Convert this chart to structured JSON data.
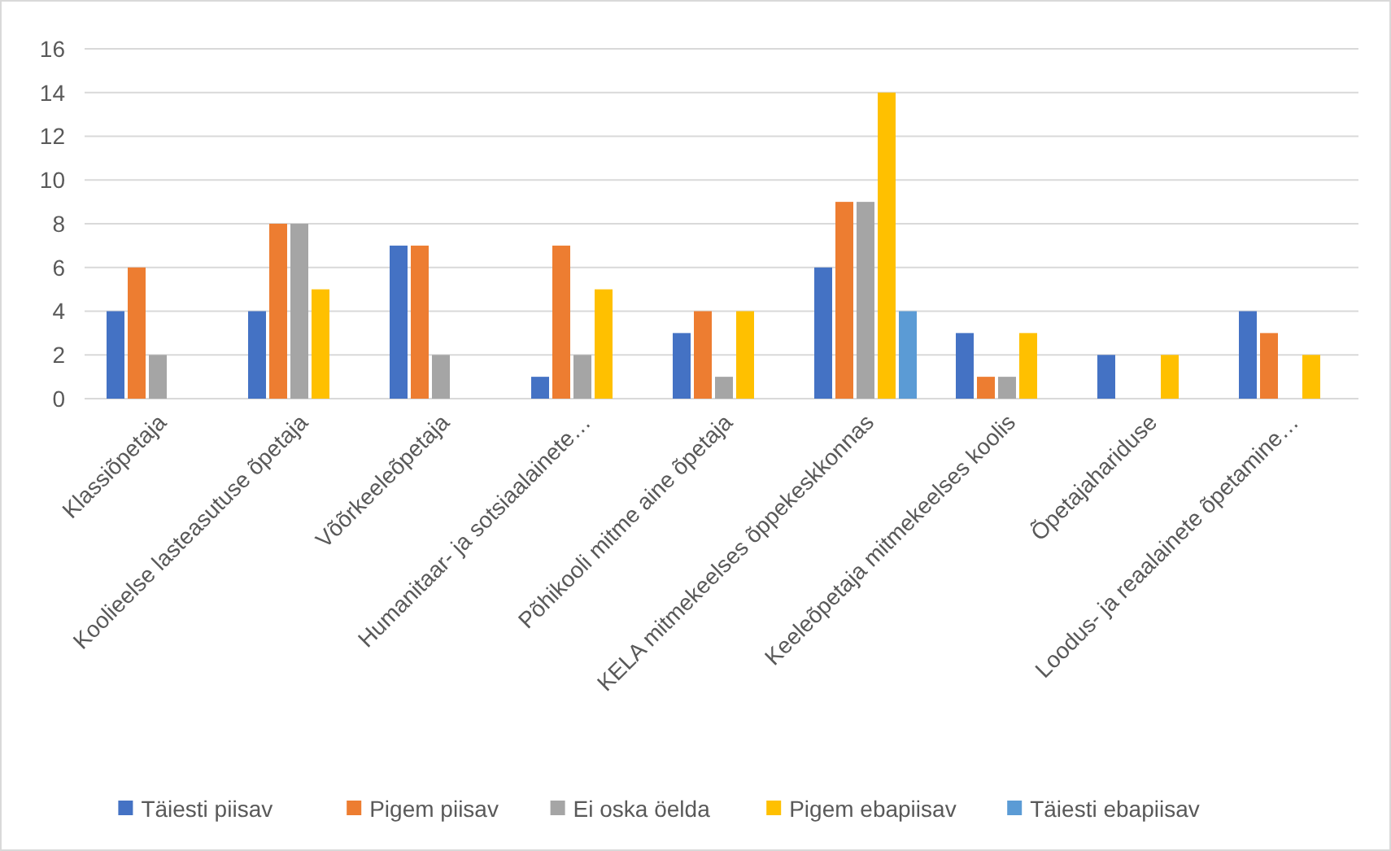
{
  "chart_data": {
    "type": "bar",
    "categories": [
      "Klassiõpetaja",
      "Koolieelse lasteasutuse õpetaja",
      "Võõrkeeleõpetaja",
      "Humanitaar- ja sotsiaalainete…",
      "Põhikooli mitme aine õpetaja",
      "KELA mitmekeelses õppekeskkonnas",
      "Keeleõpetaja mitmekeelses koolis",
      "Õpetajahariduse",
      "Loodus- ja reaalainete õpetamine…"
    ],
    "series": [
      {
        "name": "Täiesti piisav",
        "color": "#4472c4",
        "values": [
          4,
          4,
          7,
          1,
          3,
          6,
          3,
          2,
          4
        ]
      },
      {
        "name": "Pigem piisav",
        "color": "#ed7d31",
        "values": [
          6,
          8,
          7,
          7,
          4,
          9,
          1,
          null,
          3
        ]
      },
      {
        "name": "Ei oska öelda",
        "color": "#a5a5a5",
        "values": [
          2,
          8,
          2,
          2,
          1,
          9,
          1,
          null,
          null
        ]
      },
      {
        "name": "Pigem ebapiisav",
        "color": "#ffc000",
        "values": [
          null,
          5,
          null,
          5,
          4,
          14,
          3,
          2,
          2
        ]
      },
      {
        "name": "Täiesti ebapiisav",
        "color": "#5b9bd5",
        "values": [
          null,
          null,
          null,
          null,
          null,
          4,
          null,
          null,
          null
        ]
      }
    ],
    "ylim": [
      0,
      16
    ],
    "yticks": [
      0,
      2,
      4,
      6,
      8,
      10,
      12,
      14,
      16
    ],
    "grid": "y",
    "legend": "bottom"
  }
}
